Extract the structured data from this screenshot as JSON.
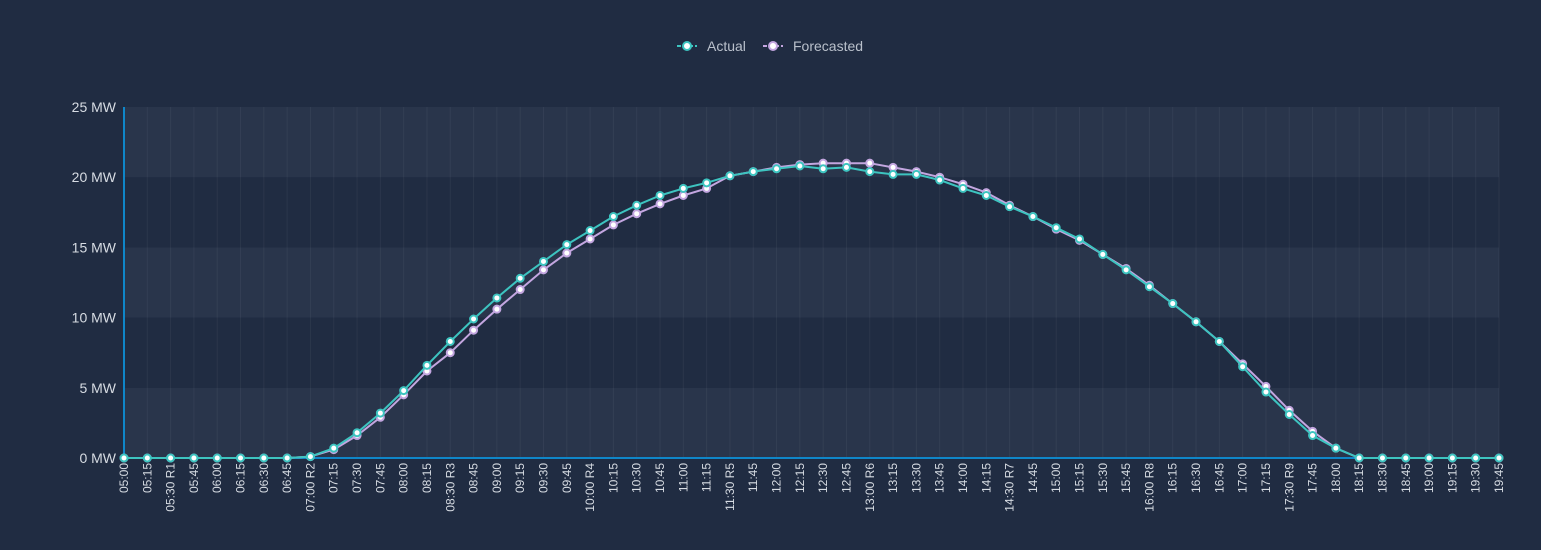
{
  "colors": {
    "background": "#202c42",
    "band_light": "#29354b",
    "band_dark": "#202c42",
    "axis": "#0f86c8",
    "actual": "#3dc4c0",
    "forecasted": "#c3a6e0",
    "text": "#d7dce3",
    "legend_text": "#b9c0cb"
  },
  "legend": {
    "actual_label": "Actual",
    "forecasted_label": "Forecasted"
  },
  "chart_data": {
    "type": "line",
    "title": "",
    "xlabel": "",
    "ylabel": "",
    "legend_position": "top-center",
    "grid": true,
    "ylim": [
      0,
      25
    ],
    "y_ticks": [
      "0 MW",
      "5 MW",
      "10 MW",
      "15 MW",
      "20 MW",
      "25 MW"
    ],
    "categories": [
      "05:00",
      "05:15",
      "05:30 R1",
      "05:45",
      "06:00",
      "06:15",
      "06:30",
      "06:45",
      "07:00 R2",
      "07:15",
      "07:30",
      "07:45",
      "08:00",
      "08:15",
      "08:30 R3",
      "08:45",
      "09:00",
      "09:15",
      "09:30",
      "09:45",
      "10:00 R4",
      "10:15",
      "10:30",
      "10:45",
      "11:00",
      "11:15",
      "11:30 R5",
      "11:45",
      "12:00",
      "12:15",
      "12:30",
      "12:45",
      "13:00 R6",
      "13:15",
      "13:30",
      "13:45",
      "14:00",
      "14:15",
      "14:30 R7",
      "14:45",
      "15:00",
      "15:15",
      "15:30",
      "15:45",
      "16:00 R8",
      "16:15",
      "16:30",
      "16:45",
      "17:00",
      "17:15",
      "17:30 R9",
      "17:45",
      "18:00",
      "18:15",
      "18:30",
      "18:45",
      "19:00",
      "19:15",
      "19:30",
      "19:45"
    ],
    "series": [
      {
        "name": "Actual",
        "values": [
          0,
          0,
          0,
          0,
          0,
          0,
          0,
          0,
          0.1,
          0.7,
          1.8,
          3.2,
          4.8,
          6.6,
          8.3,
          9.9,
          11.4,
          12.8,
          14.0,
          15.2,
          16.2,
          17.2,
          18.0,
          18.7,
          19.2,
          19.6,
          20.1,
          20.4,
          20.6,
          20.8,
          20.6,
          20.7,
          20.4,
          20.2,
          20.2,
          19.8,
          19.2,
          18.7,
          17.9,
          17.2,
          16.4,
          15.6,
          14.5,
          13.4,
          12.2,
          11.0,
          9.7,
          8.3,
          6.5,
          4.7,
          3.1,
          1.6,
          0.7,
          0,
          0,
          0,
          0,
          0,
          0,
          0
        ]
      },
      {
        "name": "Forecasted",
        "values": [
          0,
          0,
          0,
          0,
          0,
          0,
          0,
          0,
          0.1,
          0.6,
          1.6,
          2.9,
          4.5,
          6.2,
          7.5,
          9.1,
          10.6,
          12.0,
          13.4,
          14.6,
          15.6,
          16.6,
          17.4,
          18.1,
          18.7,
          19.2,
          20.1,
          20.4,
          20.7,
          20.9,
          21.0,
          21.0,
          21.0,
          20.7,
          20.4,
          20.0,
          19.5,
          18.9,
          18.0,
          17.2,
          16.3,
          15.5,
          14.5,
          13.5,
          12.3,
          11.0,
          9.7,
          8.3,
          6.7,
          5.1,
          3.4,
          1.9,
          0.7,
          0,
          0,
          0,
          0,
          0,
          0,
          0
        ]
      }
    ]
  }
}
